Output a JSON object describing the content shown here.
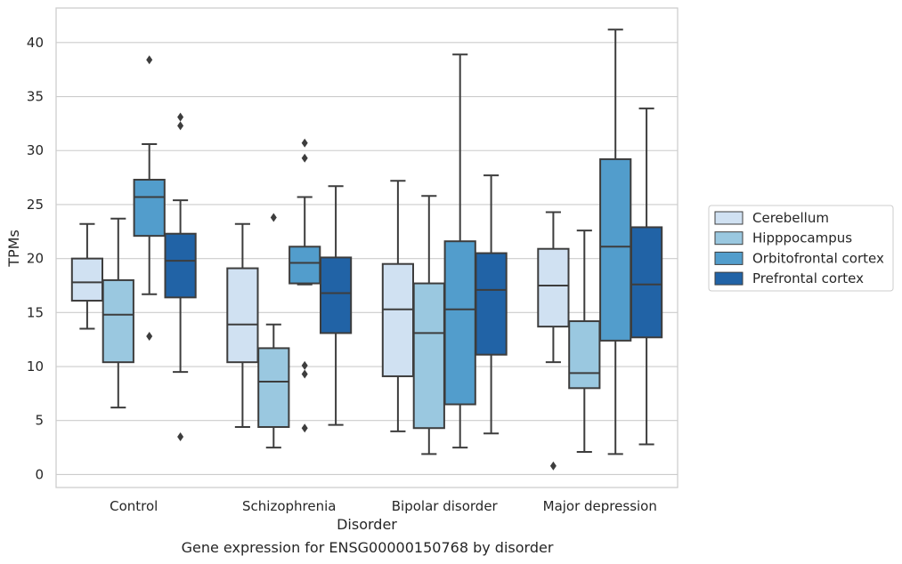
{
  "caption": "Gene expression for ENSG00000150768 by disorder",
  "chart_data": {
    "type": "box",
    "xlabel": "Disorder",
    "ylabel": "TPMs",
    "ylim": [
      -1.2,
      43.2
    ],
    "yticks": [
      0,
      5,
      10,
      15,
      20,
      25,
      30,
      35,
      40
    ],
    "grid": "horizontal",
    "legend_position": "right",
    "categories": [
      "Control",
      "Schizophrenia",
      "Bipolar disorder",
      "Major depression"
    ],
    "series": [
      {
        "name": "Cerebellum",
        "color": "#d0e1f2",
        "boxes": [
          {
            "whislo": 13.5,
            "q1": 16.1,
            "med": 17.8,
            "q3": 20.0,
            "whishi": 23.2,
            "fliers": []
          },
          {
            "whislo": 4.4,
            "q1": 10.4,
            "med": 13.9,
            "q3": 19.1,
            "whishi": 23.2,
            "fliers": []
          },
          {
            "whislo": 4.0,
            "q1": 9.1,
            "med": 15.3,
            "q3": 19.5,
            "whishi": 27.2,
            "fliers": []
          },
          {
            "whislo": 10.4,
            "q1": 13.7,
            "med": 17.5,
            "q3": 20.9,
            "whishi": 24.3,
            "fliers": [
              0.8
            ]
          }
        ]
      },
      {
        "name": "Hipppocampus",
        "color": "#9ac8e0",
        "boxes": [
          {
            "whislo": 6.2,
            "q1": 10.4,
            "med": 14.8,
            "q3": 18.0,
            "whishi": 23.7,
            "fliers": []
          },
          {
            "whislo": 2.5,
            "q1": 4.4,
            "med": 8.6,
            "q3": 11.7,
            "whishi": 13.9,
            "fliers": [
              23.8
            ]
          },
          {
            "whislo": 1.9,
            "q1": 4.3,
            "med": 13.1,
            "q3": 17.7,
            "whishi": 25.8,
            "fliers": []
          },
          {
            "whislo": 2.1,
            "q1": 8.0,
            "med": 9.4,
            "q3": 14.2,
            "whishi": 22.6,
            "fliers": []
          }
        ]
      },
      {
        "name": "Orbitofrontal cortex",
        "color": "#529dcc",
        "boxes": [
          {
            "whislo": 16.7,
            "q1": 22.1,
            "med": 25.7,
            "q3": 27.3,
            "whishi": 30.6,
            "fliers": [
              38.4,
              12.8
            ]
          },
          {
            "whislo": 17.6,
            "q1": 17.7,
            "med": 19.6,
            "q3": 21.1,
            "whishi": 25.7,
            "fliers": [
              30.7,
              29.3,
              10.1,
              9.3,
              4.3
            ]
          },
          {
            "whislo": 2.5,
            "q1": 6.5,
            "med": 15.3,
            "q3": 21.6,
            "whishi": 38.9,
            "fliers": []
          },
          {
            "whislo": 1.9,
            "q1": 12.4,
            "med": 21.1,
            "q3": 29.2,
            "whishi": 41.2,
            "fliers": []
          }
        ]
      },
      {
        "name": "Prefrontal cortex",
        "color": "#2163a6",
        "boxes": [
          {
            "whislo": 9.5,
            "q1": 16.4,
            "med": 19.8,
            "q3": 22.3,
            "whishi": 25.4,
            "fliers": [
              33.1,
              32.3,
              3.5
            ]
          },
          {
            "whislo": 4.6,
            "q1": 13.1,
            "med": 16.8,
            "q3": 20.1,
            "whishi": 26.7,
            "fliers": []
          },
          {
            "whislo": 3.8,
            "q1": 11.1,
            "med": 17.1,
            "q3": 20.5,
            "whishi": 27.7,
            "fliers": []
          },
          {
            "whislo": 2.8,
            "q1": 12.7,
            "med": 17.6,
            "q3": 22.9,
            "whishi": 33.9,
            "fliers": []
          }
        ]
      }
    ]
  }
}
